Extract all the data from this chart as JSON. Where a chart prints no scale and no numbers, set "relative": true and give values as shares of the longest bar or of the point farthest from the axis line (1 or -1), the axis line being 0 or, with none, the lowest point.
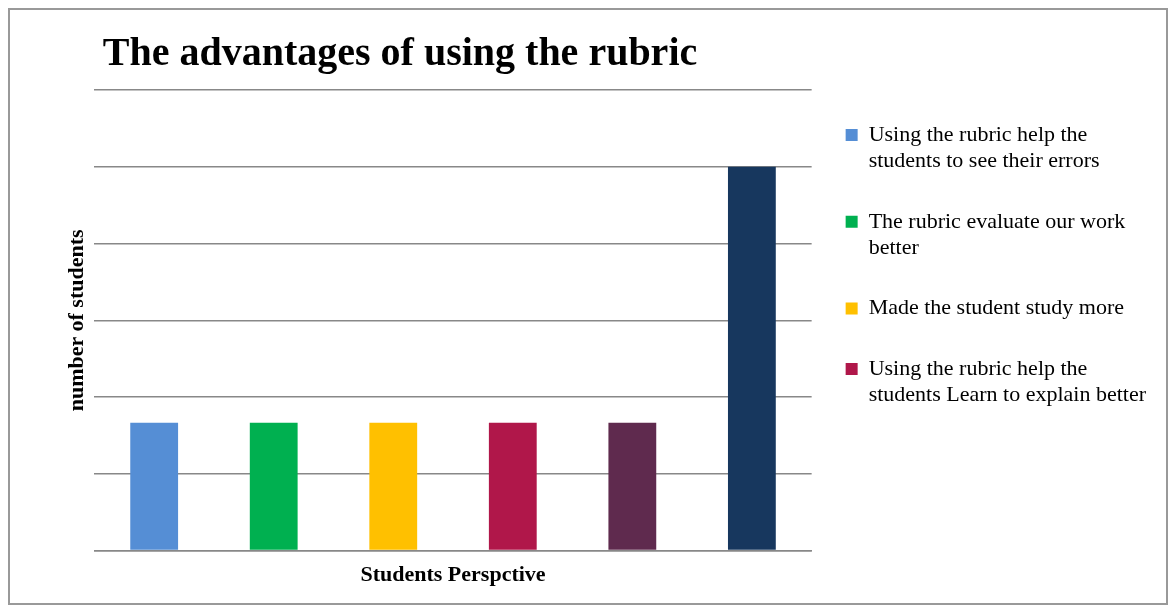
{
  "chart_data": {
    "type": "bar",
    "title": "The advantages of using the rubric",
    "xlabel": "Students Perspctive",
    "ylabel": "number of students",
    "relative": true,
    "grid": "y",
    "legend": "right",
    "stacked": true,
    "categories": [
      null,
      null,
      null,
      null,
      null,
      null
    ],
    "series": [
      {
        "name": "Using the rubric help the students to see their errors",
        "color": "#558ed5",
        "values": [
          0.333,
          null,
          null,
          null,
          null,
          null
        ]
      },
      {
        "name": "The rubric evaluate our work better",
        "color": "#00b050",
        "values": [
          null,
          0.333,
          null,
          null,
          null,
          null
        ]
      },
      {
        "name": "Made the student study more",
        "color": "#ffc000",
        "values": [
          null,
          null,
          0.333,
          null,
          null,
          null
        ]
      },
      {
        "name": "Using the rubric help the students Learn to explain better",
        "color": "#b0174a",
        "values": [
          null,
          null,
          null,
          0.333,
          null,
          null
        ]
      },
      {
        "color": "#5f2a4e",
        "values": [
          null,
          null,
          null,
          null,
          0.333,
          null
        ]
      },
      {
        "color": "#17375e",
        "values": [
          null,
          null,
          null,
          null,
          null,
          1
        ]
      }
    ]
  }
}
